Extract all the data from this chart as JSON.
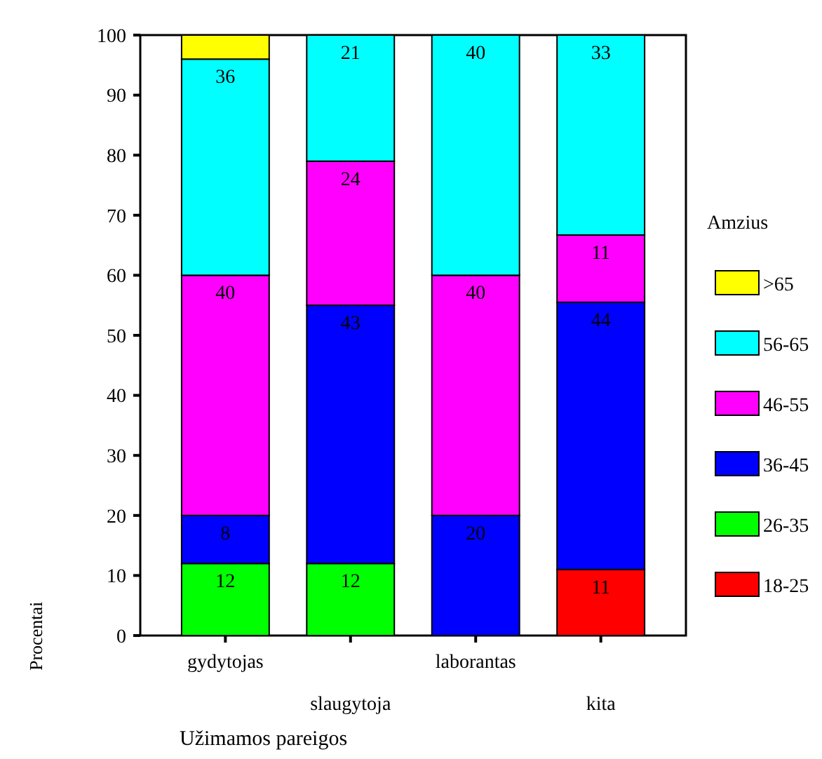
{
  "chart_data": {
    "type": "bar",
    "stacked": true,
    "xlabel": "Užimamos pareigos",
    "ylabel": "Procentai",
    "legend_title": "Amzius",
    "legend": "right",
    "categories": [
      "gydytojas",
      "slaugytoja",
      "laborantas",
      "kita"
    ],
    "ylim": [
      0,
      100
    ],
    "yticks": [
      0,
      10,
      20,
      30,
      40,
      50,
      60,
      70,
      80,
      90,
      100
    ],
    "series": [
      {
        "name": "18-25",
        "color": "#ff0000",
        "values": [
          0,
          0,
          0,
          11
        ],
        "value_labels": [
          null,
          null,
          null,
          "11"
        ]
      },
      {
        "name": "26-35",
        "color": "#00ff00",
        "values": [
          12,
          12,
          0,
          0
        ],
        "value_labels": [
          "12",
          "12",
          null,
          null
        ]
      },
      {
        "name": "36-45",
        "color": "#0000ff",
        "values": [
          8,
          43,
          20,
          44.5
        ],
        "value_labels": [
          "8",
          "43",
          "20",
          "44"
        ]
      },
      {
        "name": "46-55",
        "color": "#ff00ff",
        "values": [
          40,
          24,
          40,
          11.2
        ],
        "value_labels": [
          "40",
          "24",
          "40",
          "11"
        ]
      },
      {
        "name": "56-65",
        "color": "#00ffff",
        "values": [
          36,
          21,
          40,
          33.3
        ],
        "value_labels": [
          "36",
          "21",
          "40",
          "33"
        ]
      },
      {
        "name": ">65",
        "color": "#ffff00",
        "values": [
          4,
          0,
          0,
          0
        ],
        "value_labels": [
          null,
          null,
          null,
          null
        ]
      }
    ]
  }
}
